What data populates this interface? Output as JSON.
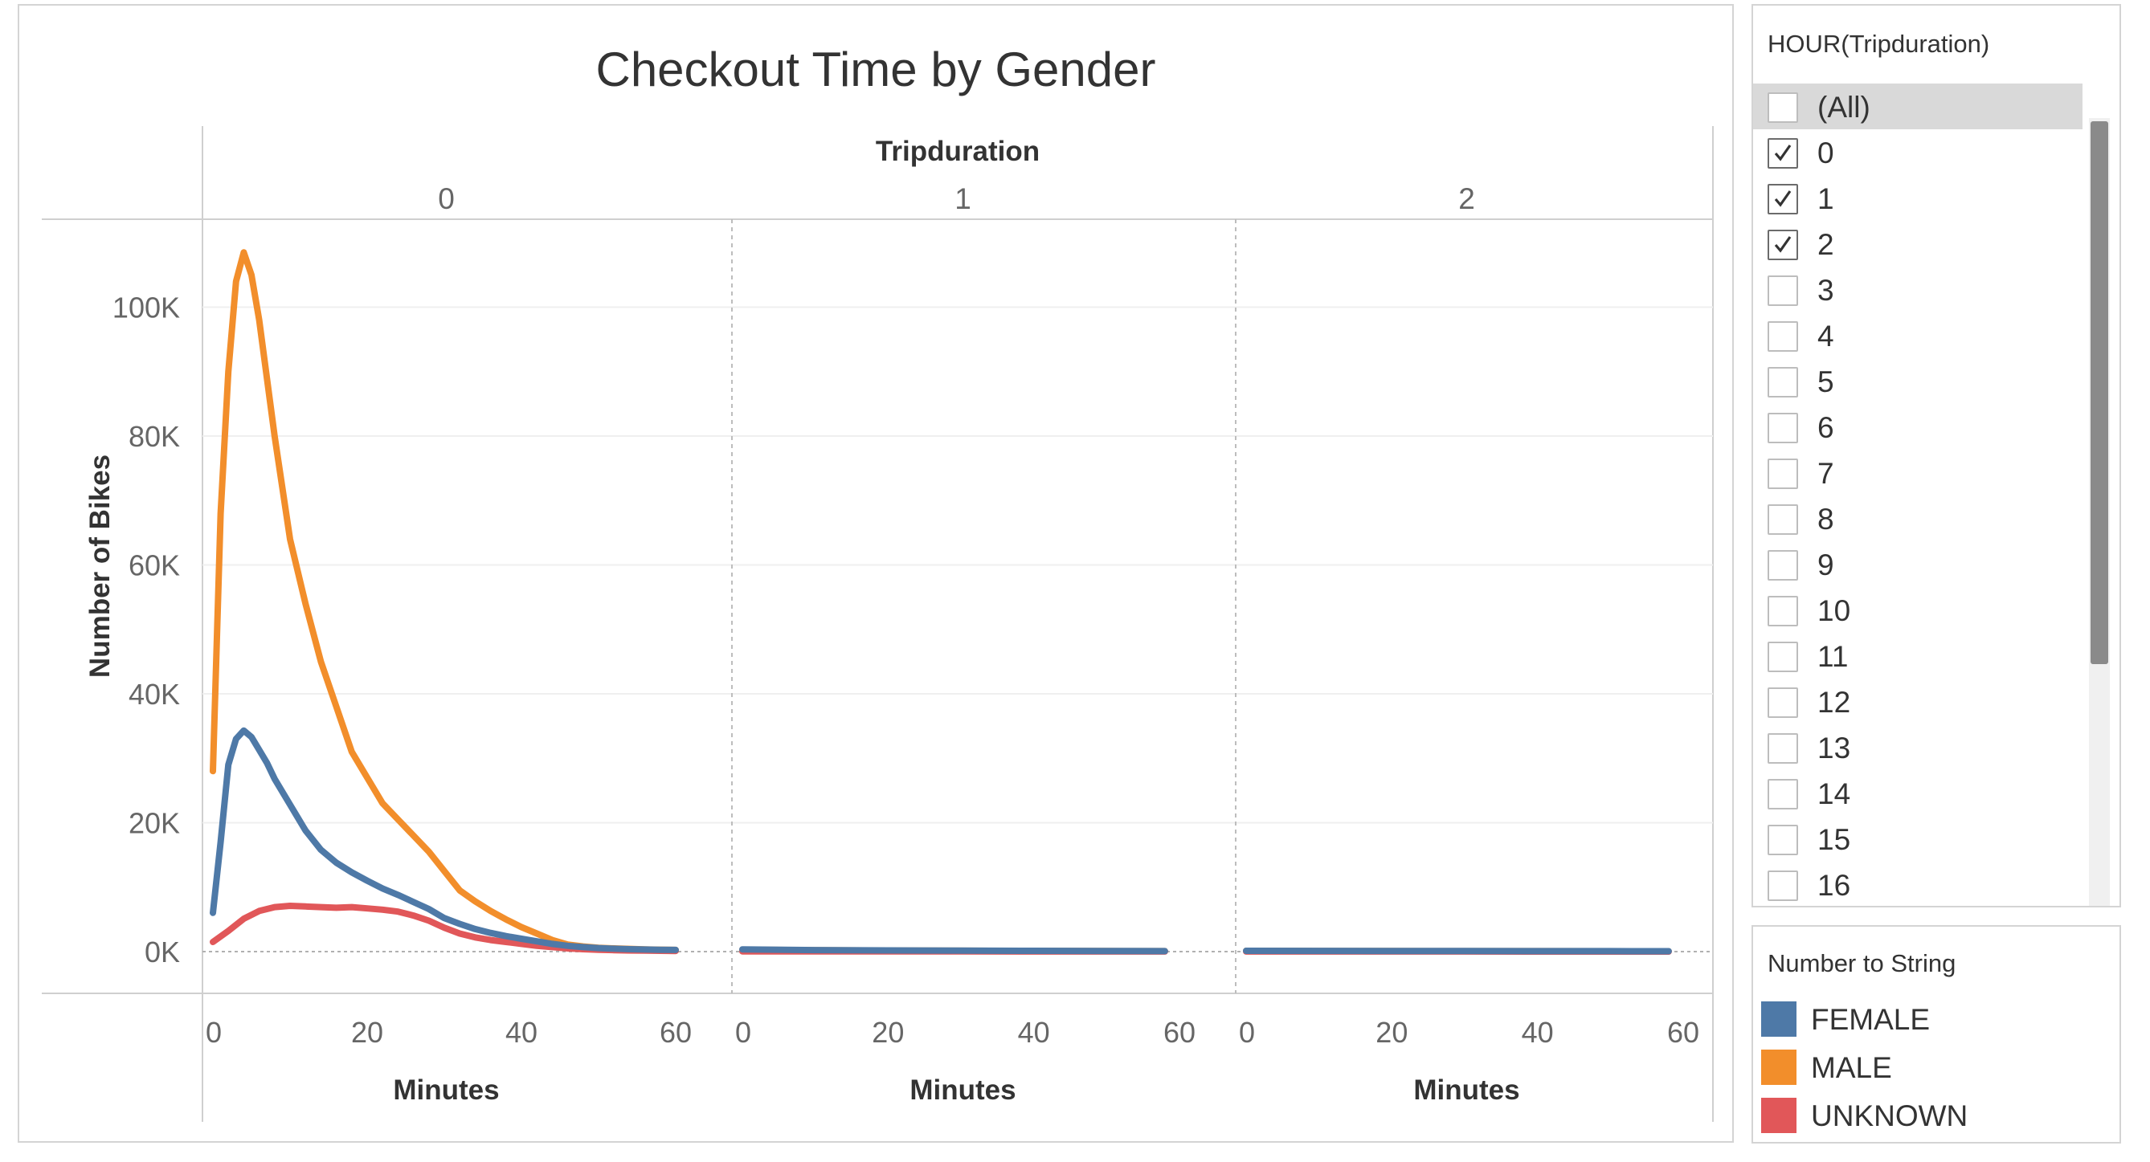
{
  "chart_data": {
    "type": "line",
    "title": "Checkout Time by Gender",
    "column_header": "Tripduration",
    "panels": [
      {
        "label": "0"
      },
      {
        "label": "1"
      },
      {
        "label": "2"
      }
    ],
    "xlabel": "Minutes",
    "ylabel": "Number of Bikes",
    "xlim": [
      0,
      60
    ],
    "ylim": [
      0,
      110000
    ],
    "x_ticks": [
      0,
      20,
      40,
      60
    ],
    "y_ticks": [
      0,
      20000,
      40000,
      60000,
      80000,
      100000
    ],
    "x_tick_labels": [
      "0",
      "20",
      "40",
      "60"
    ],
    "y_tick_labels": [
      "0K",
      "20K",
      "40K",
      "60K",
      "80K",
      "100K"
    ],
    "gridlines": true,
    "series": [
      {
        "name": "MALE",
        "color": "#f28e2b",
        "panels": [
          {
            "x": [
              0,
              1,
              2,
              3,
              4,
              5,
              6,
              7,
              8,
              10,
              12,
              14,
              16,
              18,
              20,
              22,
              24,
              26,
              28,
              30,
              32,
              34,
              36,
              38,
              40,
              42,
              44,
              46,
              48,
              50,
              52,
              54,
              56,
              58,
              60
            ],
            "y": [
              28000,
              68000,
              90000,
              104000,
              108500,
              105000,
              98000,
              89000,
              80000,
              64000,
              54000,
              45000,
              38000,
              31000,
              27000,
              23000,
              20500,
              18000,
              15500,
              12500,
              9500,
              7800,
              6300,
              5000,
              3800,
              2800,
              1800,
              1100,
              800,
              600,
              500,
              420,
              350,
              300,
              260
            ]
          },
          {
            "x": [
              0,
              10,
              20,
              30,
              40,
              50,
              58
            ],
            "y": [
              300,
              220,
              180,
              140,
              110,
              90,
              70
            ]
          },
          {
            "x": [
              0,
              10,
              20,
              30,
              40,
              50,
              58
            ],
            "y": [
              120,
              100,
              90,
              80,
              70,
              60,
              50
            ]
          }
        ]
      },
      {
        "name": "FEMALE",
        "color": "#4e79a7",
        "panels": [
          {
            "x": [
              0,
              1,
              2,
              3,
              4,
              5,
              6,
              7,
              8,
              10,
              12,
              14,
              16,
              18,
              20,
              22,
              24,
              26,
              28,
              30,
              32,
              34,
              36,
              38,
              40,
              42,
              44,
              46,
              48,
              50,
              52,
              54,
              56,
              58,
              60
            ],
            "y": [
              6000,
              17000,
              29000,
              33000,
              34300,
              33300,
              31300,
              29300,
              26800,
              22800,
              18800,
              15800,
              13800,
              12300,
              11000,
              9800,
              8800,
              7700,
              6600,
              5200,
              4300,
              3500,
              2900,
              2400,
              2000,
              1600,
              1200,
              900,
              700,
              550,
              450,
              380,
              330,
              290,
              260
            ]
          },
          {
            "x": [
              0,
              10,
              20,
              30,
              40,
              50,
              58
            ],
            "y": [
              350,
              240,
              190,
              150,
              120,
              100,
              80
            ]
          },
          {
            "x": [
              0,
              10,
              20,
              30,
              40,
              50,
              58
            ],
            "y": [
              130,
              110,
              100,
              90,
              80,
              70,
              60
            ]
          }
        ]
      },
      {
        "name": "UNKNOWN",
        "color": "#e15759",
        "panels": [
          {
            "x": [
              0,
              2,
              4,
              6,
              8,
              10,
              12,
              14,
              16,
              18,
              20,
              22,
              24,
              26,
              28,
              30,
              32,
              34,
              36,
              38,
              40,
              42,
              44,
              46,
              48,
              50,
              52,
              54,
              56,
              58,
              60
            ],
            "y": [
              1500,
              3200,
              5100,
              6300,
              6900,
              7100,
              7000,
              6900,
              6800,
              6900,
              6700,
              6500,
              6200,
              5600,
              4800,
              3700,
              2800,
              2200,
              1800,
              1500,
              1200,
              900,
              700,
              500,
              380,
              290,
              230,
              180,
              150,
              120,
              100
            ]
          },
          {
            "x": [
              0,
              10,
              20,
              30,
              40,
              50,
              58
            ],
            "y": [
              40,
              30,
              25,
              20,
              15,
              10,
              8
            ]
          },
          {
            "x": [
              0,
              10,
              20,
              30,
              40,
              50,
              58
            ],
            "y": [
              15,
              12,
              10,
              8,
              6,
              5,
              4
            ]
          }
        ]
      }
    ]
  },
  "filter": {
    "title": "HOUR(Tripduration)",
    "items": [
      {
        "label": "(All)",
        "checked": false
      },
      {
        "label": "0",
        "checked": true
      },
      {
        "label": "1",
        "checked": true
      },
      {
        "label": "2",
        "checked": true
      },
      {
        "label": "3",
        "checked": false
      },
      {
        "label": "4",
        "checked": false
      },
      {
        "label": "5",
        "checked": false
      },
      {
        "label": "6",
        "checked": false
      },
      {
        "label": "7",
        "checked": false
      },
      {
        "label": "8",
        "checked": false
      },
      {
        "label": "9",
        "checked": false
      },
      {
        "label": "10",
        "checked": false
      },
      {
        "label": "11",
        "checked": false
      },
      {
        "label": "12",
        "checked": false
      },
      {
        "label": "13",
        "checked": false
      },
      {
        "label": "14",
        "checked": false
      },
      {
        "label": "15",
        "checked": false
      },
      {
        "label": "16",
        "checked": false
      }
    ]
  },
  "legend": {
    "title": "Number to String",
    "items": [
      {
        "label": "FEMALE",
        "color": "#4e79a7"
      },
      {
        "label": "MALE",
        "color": "#f28e2b"
      },
      {
        "label": "UNKNOWN",
        "color": "#e15759"
      }
    ]
  }
}
